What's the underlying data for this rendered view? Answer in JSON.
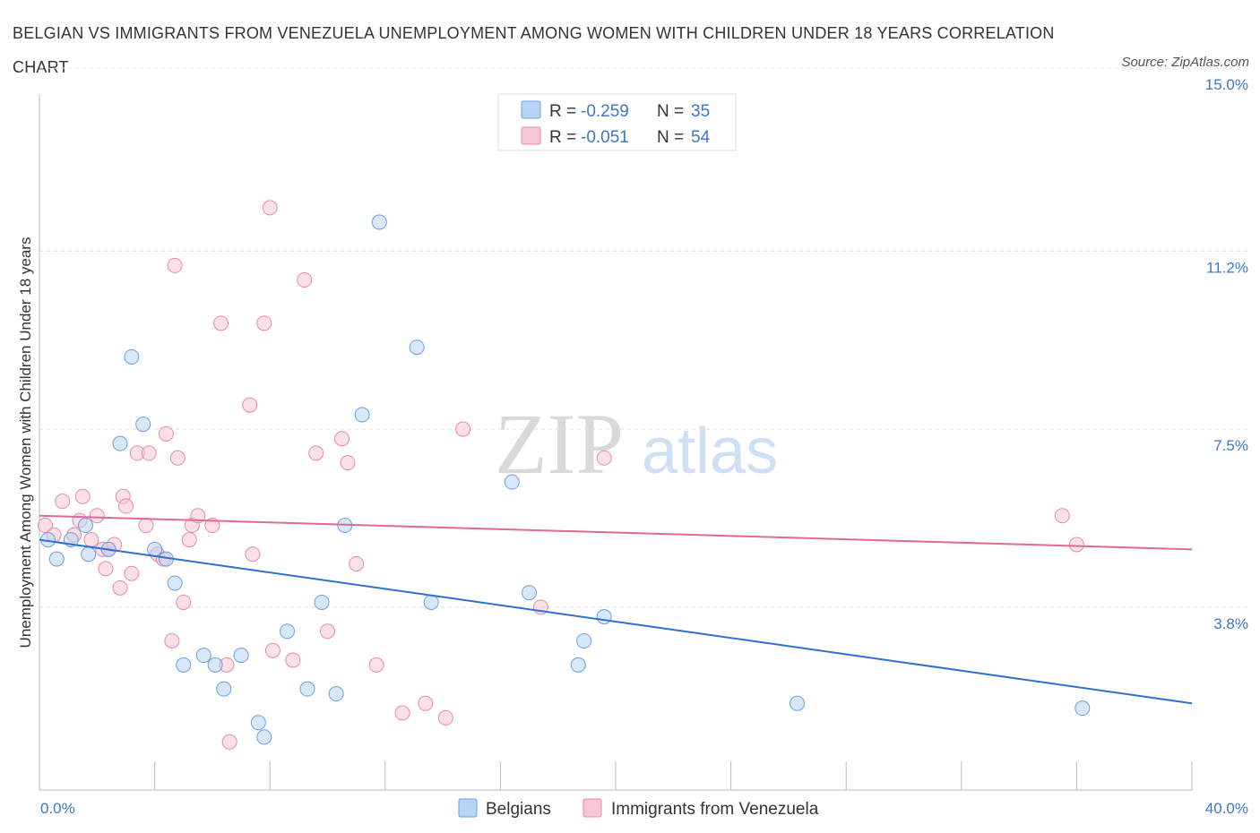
{
  "header": {
    "title": "BELGIAN VS IMMIGRANTS FROM VENEZUELA UNEMPLOYMENT AMONG WOMEN WITH CHILDREN UNDER 18 YEARS CORRELATION CHART",
    "source": "Source: ZipAtlas.com"
  },
  "watermark": {
    "zip": "ZIP",
    "atlas": "atlas"
  },
  "colors": {
    "belgians_fill": "#b9d3f5",
    "belgians_stroke": "#6a9fe0",
    "belgians_line": "#2f6fd0",
    "venezuela_fill": "#f8c6d6",
    "venezuela_stroke": "#e88aa7",
    "venezuela_line": "#e06a95",
    "accent_text": "#3a78c9"
  },
  "chart_data": {
    "type": "scatter",
    "title": "BELGIAN VS IMMIGRANTS FROM VENEZUELA UNEMPLOYMENT AMONG WOMEN WITH CHILDREN UNDER 18 YEARS CORRELATION CHART",
    "xlabel": "",
    "ylabel": "Unemployment Among Women with Children Under 18 years",
    "xlim": [
      0,
      40
    ],
    "ylim": [
      0.0,
      15.3
    ],
    "x_tick_labels": [
      "0.0%",
      "40.0%"
    ],
    "y_ticks": [
      3.8,
      7.5,
      11.2,
      15.0
    ],
    "y_tick_labels": [
      "3.8%",
      "7.5%",
      "11.2%",
      "15.0%"
    ],
    "grid": "horizontal dashed",
    "legend_position": "top-center and bottom",
    "series": [
      {
        "name": "Belgians",
        "stats": {
          "r_label": "R =",
          "r_value": "-0.259",
          "n_label": "N =",
          "n_value": "35"
        },
        "trend": {
          "x": [
            0,
            40
          ],
          "y": [
            5.2,
            1.8
          ]
        },
        "points": [
          [
            0.3,
            5.2
          ],
          [
            0.6,
            4.8
          ],
          [
            1.1,
            5.2
          ],
          [
            1.6,
            5.5
          ],
          [
            1.7,
            4.9
          ],
          [
            2.4,
            5.0
          ],
          [
            2.8,
            7.2
          ],
          [
            3.2,
            9.0
          ],
          [
            3.6,
            7.6
          ],
          [
            4.0,
            5.0
          ],
          [
            4.4,
            4.8
          ],
          [
            4.7,
            4.3
          ],
          [
            5.0,
            2.6
          ],
          [
            5.7,
            2.8
          ],
          [
            6.1,
            2.6
          ],
          [
            6.4,
            2.1
          ],
          [
            7.0,
            2.8
          ],
          [
            7.6,
            1.4
          ],
          [
            7.8,
            1.1
          ],
          [
            8.6,
            3.3
          ],
          [
            9.3,
            2.1
          ],
          [
            9.8,
            3.9
          ],
          [
            10.3,
            2.0
          ],
          [
            10.6,
            5.5
          ],
          [
            11.2,
            7.8
          ],
          [
            11.8,
            11.8
          ],
          [
            13.1,
            9.2
          ],
          [
            13.6,
            3.9
          ],
          [
            16.4,
            6.4
          ],
          [
            17.0,
            4.1
          ],
          [
            18.7,
            2.6
          ],
          [
            18.9,
            3.1
          ],
          [
            19.6,
            3.6
          ],
          [
            26.3,
            1.8
          ],
          [
            36.2,
            1.7
          ]
        ]
      },
      {
        "name": "Immigrants from Venezuela",
        "stats": {
          "r_label": "R =",
          "r_value": "-0.051",
          "n_label": "N =",
          "n_value": "54"
        },
        "trend": {
          "x": [
            0,
            40
          ],
          "y": [
            5.7,
            5.0
          ]
        },
        "points": [
          [
            0.2,
            5.5
          ],
          [
            0.5,
            5.3
          ],
          [
            0.8,
            6.0
          ],
          [
            1.2,
            5.3
          ],
          [
            1.4,
            5.6
          ],
          [
            1.5,
            6.1
          ],
          [
            1.8,
            5.2
          ],
          [
            2.0,
            5.7
          ],
          [
            2.2,
            5.0
          ],
          [
            2.3,
            4.6
          ],
          [
            2.4,
            5.0
          ],
          [
            2.6,
            5.1
          ],
          [
            2.8,
            4.2
          ],
          [
            2.9,
            6.1
          ],
          [
            3.0,
            5.9
          ],
          [
            3.2,
            4.5
          ],
          [
            3.4,
            7.0
          ],
          [
            3.7,
            5.5
          ],
          [
            3.8,
            7.0
          ],
          [
            4.1,
            4.9
          ],
          [
            4.3,
            4.8
          ],
          [
            4.4,
            7.4
          ],
          [
            4.6,
            3.1
          ],
          [
            4.7,
            10.9
          ],
          [
            4.8,
            6.9
          ],
          [
            5.0,
            3.9
          ],
          [
            5.2,
            5.2
          ],
          [
            5.3,
            5.5
          ],
          [
            5.5,
            5.7
          ],
          [
            6.0,
            5.5
          ],
          [
            6.3,
            9.7
          ],
          [
            6.5,
            2.6
          ],
          [
            6.6,
            1.0
          ],
          [
            7.3,
            8.0
          ],
          [
            7.4,
            4.9
          ],
          [
            7.8,
            9.7
          ],
          [
            8.0,
            12.1
          ],
          [
            8.1,
            2.9
          ],
          [
            8.8,
            2.7
          ],
          [
            9.2,
            10.6
          ],
          [
            9.6,
            7.0
          ],
          [
            10.0,
            3.3
          ],
          [
            10.5,
            7.3
          ],
          [
            10.7,
            6.8
          ],
          [
            11.0,
            4.7
          ],
          [
            11.7,
            2.6
          ],
          [
            12.6,
            1.6
          ],
          [
            13.4,
            1.8
          ],
          [
            14.1,
            1.5
          ],
          [
            14.7,
            7.5
          ],
          [
            17.4,
            3.8
          ],
          [
            19.6,
            6.9
          ],
          [
            35.5,
            5.7
          ],
          [
            36.0,
            5.1
          ]
        ]
      }
    ]
  },
  "bottom_legend": {
    "belgians": "Belgians",
    "venezuela": "Immigrants from Venezuela"
  }
}
